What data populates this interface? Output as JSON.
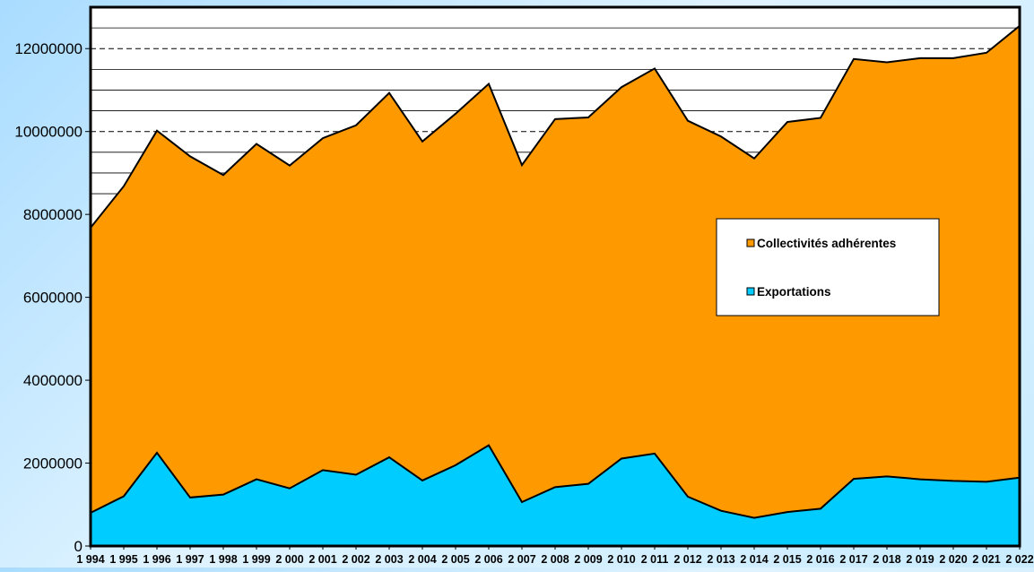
{
  "chart_data": {
    "type": "area",
    "stacked": true,
    "x": [
      "1 994",
      "1 995",
      "1 996",
      "1 997",
      "1 998",
      "1 999",
      "2 000",
      "2 001",
      "2 002",
      "2 003",
      "2 004",
      "2 005",
      "2 006",
      "2 007",
      "2 008",
      "2 009",
      "2 010",
      "2 011",
      "2 012",
      "2 013",
      "2 014",
      "2 015",
      "2 016",
      "2 017",
      "2 018",
      "2 019",
      "2 020",
      "2 021",
      "2 022"
    ],
    "series": [
      {
        "name": "Exportations",
        "color": "#00ccff",
        "values": [
          800000,
          1200000,
          2250000,
          1170000,
          1240000,
          1610000,
          1390000,
          1830000,
          1720000,
          2140000,
          1580000,
          1950000,
          2430000,
          1060000,
          1420000,
          1500000,
          2110000,
          2230000,
          1190000,
          850000,
          680000,
          820000,
          900000,
          1620000,
          1680000,
          1610000,
          1570000,
          1550000,
          1650000
        ]
      },
      {
        "name": "Collectivités adhérentes",
        "color": "#ff9900",
        "values": [
          6880000,
          7480000,
          7770000,
          8230000,
          7710000,
          8090000,
          7790000,
          8010000,
          8430000,
          8790000,
          8180000,
          8480000,
          8720000,
          8130000,
          8880000,
          8840000,
          8960000,
          9290000,
          9070000,
          9030000,
          8670000,
          9410000,
          9430000,
          10130000,
          9990000,
          10160000,
          10200000,
          10350000,
          10900000
        ]
      }
    ],
    "yticks": [
      0,
      2000000,
      4000000,
      6000000,
      8000000,
      10000000,
      12000000
    ],
    "ytick_labels": [
      "0",
      "2000000",
      "4000000",
      "6000000",
      "8000000",
      "10000000",
      "12000000"
    ],
    "ylim": [
      0,
      13000000
    ],
    "grid_minor_step": 500000,
    "grid_range": [
      8500000,
      13000000
    ],
    "legend": {
      "position": "right",
      "order": [
        "Collectivités adhérentes",
        "Exportations"
      ]
    }
  }
}
